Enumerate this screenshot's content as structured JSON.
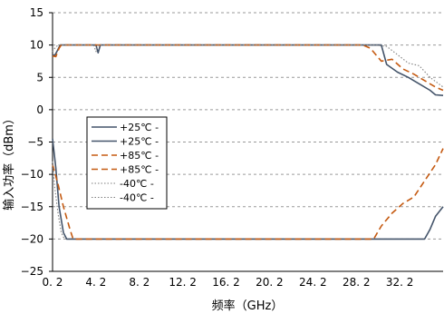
{
  "chart_data": {
    "type": "line",
    "title": "",
    "xlabel": "频率（GHz）",
    "ylabel": "输入功率（dBm）",
    "xlim": [
      0.2,
      36.2
    ],
    "ylim": [
      -25,
      15
    ],
    "xticks": [
      0.2,
      4.2,
      8.2,
      12.2,
      16.2,
      20.2,
      24.2,
      28.2,
      32.2
    ],
    "xtick_labels": [
      "0. 2",
      "4. 2",
      "8. 2",
      "12. 2",
      "16. 2",
      "20. 2",
      "24. 2",
      "28. 2",
      "32. 2"
    ],
    "yticks": [
      15,
      10,
      5,
      0,
      -5,
      -10,
      -15,
      -20,
      -25
    ],
    "ytick_labels": [
      "15",
      "10",
      "5",
      "0",
      "−5",
      "−10",
      "−15",
      "−20",
      "−25"
    ],
    "grid": "horizontal dashed",
    "legend": "lower-left",
    "colors": {
      "blue": "#44546a",
      "orange": "#c55a11",
      "gray": "#7f7f7f",
      "grid": "#9a9a9a"
    },
    "series": [
      {
        "name": "+25℃ -",
        "color": "#44546a",
        "dash": "solid",
        "x": [
          0.2,
          0.4,
          0.6,
          0.9,
          4.0,
          4.2,
          4.4,
          4.6,
          30.0,
          30.5,
          31.0,
          32.0,
          33.0,
          34.0,
          35.0,
          35.5,
          36.2
        ],
        "y": [
          8.5,
          8.4,
          9.0,
          10,
          10,
          10,
          8.8,
          10,
          10,
          10,
          7.0,
          5.8,
          5.0,
          4.0,
          3.0,
          2.3,
          2.2
        ]
      },
      {
        "name": "+25℃ -",
        "color": "#44546a",
        "dash": "solid",
        "x": [
          0.2,
          0.5,
          0.8,
          1.2,
          1.5,
          34.0,
          34.5,
          35.0,
          35.5,
          36.2
        ],
        "y": [
          -4.5,
          -9.0,
          -15.0,
          -19.0,
          -20,
          -20,
          -20,
          -18.5,
          -16.5,
          -15.0
        ]
      },
      {
        "name": "+85℃ -",
        "color": "#c55a11",
        "dash": "dashed",
        "x": [
          0.2,
          0.5,
          0.8,
          1.0,
          28.8,
          29.5,
          30.5,
          31.5,
          32.5,
          33.5,
          34.5,
          35.5,
          36.2
        ],
        "y": [
          8.3,
          8.2,
          9.5,
          10,
          10,
          9.5,
          7.5,
          7.8,
          6.3,
          5.5,
          4.5,
          3.5,
          3.0
        ]
      },
      {
        "name": "+85℃ -",
        "color": "#c55a11",
        "dash": "dashed",
        "x": [
          0.2,
          0.7,
          1.2,
          1.8,
          2.1,
          29.8,
          30.5,
          31.5,
          32.5,
          33.5,
          34.5,
          35.5,
          36.2
        ],
        "y": [
          -8.5,
          -11.5,
          -15.0,
          -18.5,
          -20,
          -20,
          -18.0,
          -16.0,
          -14.5,
          -13.5,
          -11.0,
          -8.5,
          -6.0
        ]
      },
      {
        "name": "-40℃ -",
        "color": "#7f7f7f",
        "dash": "dotted",
        "x": [
          0.2,
          0.4,
          0.7,
          4.0,
          4.2,
          4.4,
          30.0,
          31.0,
          32.0,
          33.0,
          34.0,
          35.0,
          36.2
        ],
        "y": [
          9.0,
          9.5,
          10,
          10,
          9.0,
          10,
          10,
          9.8,
          8.5,
          7.2,
          6.8,
          5.0,
          3.5
        ]
      },
      {
        "name": "-40℃ -",
        "color": "#7f7f7f",
        "dash": "dotted",
        "x": [
          0.2,
          0.4,
          0.7,
          1.0,
          1.3
        ],
        "y": [
          -8.0,
          -12.0,
          -16.0,
          -19.0,
          -20
        ]
      }
    ]
  }
}
